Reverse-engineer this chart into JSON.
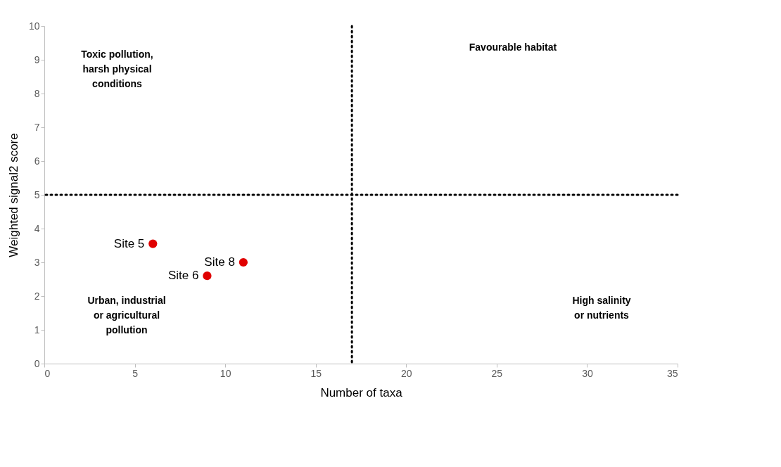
{
  "chart_data": {
    "type": "scatter",
    "xlabel": "Number of taxa",
    "ylabel": "Weighted signal2 score",
    "series": [
      {
        "name": "Site 5",
        "color": "#e00000",
        "x": [
          6
        ],
        "values": [
          3.55
        ]
      },
      {
        "name": "Site 6",
        "color": "#e00000",
        "x": [
          9
        ],
        "values": [
          2.6
        ]
      },
      {
        "name": "Site 8",
        "color": "#e00000",
        "x": [
          11
        ],
        "values": [
          3.0
        ]
      }
    ],
    "marker": "circle",
    "grid": false,
    "xlim": [
      0,
      35
    ],
    "xticks": [
      0,
      5,
      10,
      15,
      20,
      25,
      30,
      35
    ],
    "ylim": [
      0,
      10
    ],
    "yticks": [
      0,
      1,
      2,
      3,
      4,
      5,
      6,
      7,
      8,
      9,
      10
    ],
    "ref_lines": [
      {
        "axis": "x",
        "value": 17,
        "color": "#000000",
        "line_style": "dotted"
      },
      {
        "axis": "y",
        "value": 5,
        "color": "#000000",
        "line_style": "dotted"
      }
    ],
    "annotations": [
      "Toxic pollution,\nharsh physical\nconditions",
      "Favourable habitat",
      "Urban, industrial\nor agricultural\npollution",
      "High salinity\nor nutrients"
    ]
  }
}
